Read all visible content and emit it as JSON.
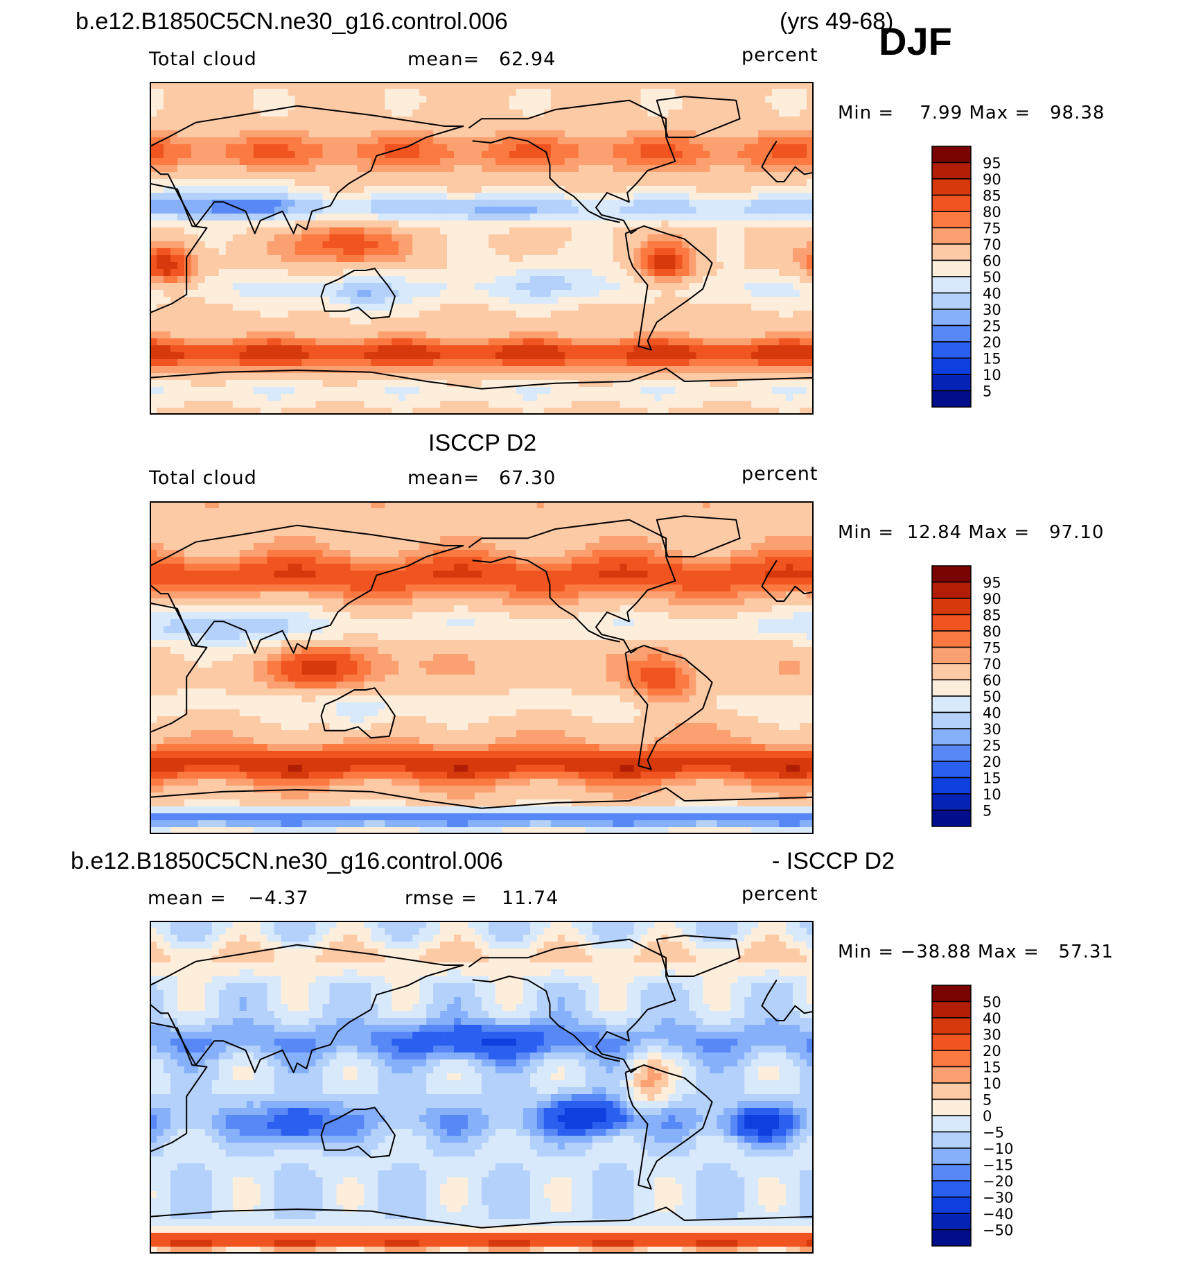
{
  "header": {
    "case": "b.e12.B1850C5CN.ne30_g16.control.006",
    "years": "(yrs 49-68)",
    "season": "DJF"
  },
  "panels": [
    {
      "id": "model",
      "heading": "",
      "variable": "Total cloud",
      "stat_left": "",
      "mean_label": "mean=",
      "mean_value": "62.94",
      "units": "percent",
      "minmax": "Min =    7.99 Max =   98.38"
    },
    {
      "id": "obs",
      "heading": "ISCCP D2",
      "variable": "Total cloud",
      "mean_label": "mean=",
      "mean_value": "67.30",
      "units": "percent",
      "minmax": "Min =  12.84 Max =   97.10"
    },
    {
      "id": "diff",
      "heading_left": "b.e12.B1850C5CN.ne30_g16.control.006",
      "heading_right": "- ISCCP D2",
      "mean_label": "mean =",
      "mean_value": "−4.37",
      "rmse_label": "rmse =",
      "rmse_value": "11.74",
      "units": "percent",
      "minmax": "Min = −38.88 Max =   57.31"
    }
  ],
  "chart_data": [
    {
      "type": "heatmap",
      "title": "b.e12.B1850C5CN.ne30_g16.control.006 (yrs 49-68) DJF",
      "variable": "Total cloud",
      "units": "percent",
      "mean": 62.94,
      "min": 7.99,
      "max": 98.38,
      "levels": [
        5,
        10,
        15,
        20,
        25,
        30,
        40,
        50,
        60,
        70,
        75,
        80,
        85,
        90,
        95
      ],
      "level_labels": [
        "95",
        "90",
        "85",
        "80",
        "75",
        "70",
        "60",
        "50",
        "40",
        "30",
        "25",
        "20",
        "15",
        "10",
        "5"
      ],
      "colors": [
        "#7a0403",
        "#b21e05",
        "#d63a0c",
        "#f05420",
        "#fb7a42",
        "#fba070",
        "#fdcaa6",
        "#fdeedc",
        "#d8e9fb",
        "#b3d1fb",
        "#86b1fa",
        "#5788f6",
        "#2b5ff0",
        "#0f3fde",
        "#0623b8",
        "#000e8c"
      ]
    },
    {
      "type": "heatmap",
      "title": "ISCCP D2",
      "variable": "Total cloud",
      "units": "percent",
      "mean": 67.3,
      "min": 12.84,
      "max": 97.1,
      "levels": [
        5,
        10,
        15,
        20,
        25,
        30,
        40,
        50,
        60,
        70,
        75,
        80,
        85,
        90,
        95
      ],
      "level_labels": [
        "95",
        "90",
        "85",
        "80",
        "75",
        "70",
        "60",
        "50",
        "40",
        "30",
        "25",
        "20",
        "15",
        "10",
        "5"
      ],
      "colors": [
        "#7a0403",
        "#b21e05",
        "#d63a0c",
        "#f05420",
        "#fb7a42",
        "#fba070",
        "#fdcaa6",
        "#fdeedc",
        "#d8e9fb",
        "#b3d1fb",
        "#86b1fa",
        "#5788f6",
        "#2b5ff0",
        "#0f3fde",
        "#0623b8",
        "#000e8c"
      ]
    },
    {
      "type": "heatmap",
      "title": "b.e12.B1850C5CN.ne30_g16.control.006 - ISCCP D2",
      "units": "percent",
      "mean": -4.37,
      "rmse": 11.74,
      "min": -38.88,
      "max": 57.31,
      "levels": [
        -50,
        -40,
        -30,
        -20,
        -15,
        -10,
        -5,
        0,
        5,
        10,
        15,
        20,
        30,
        40,
        50
      ],
      "level_labels": [
        "50",
        "40",
        "30",
        "20",
        "15",
        "10",
        "5",
        "0",
        "−5",
        "−10",
        "−15",
        "−20",
        "−30",
        "−40",
        "−50"
      ],
      "colors": [
        "#7a0403",
        "#b21e05",
        "#d63a0c",
        "#f05420",
        "#fb7a42",
        "#fba070",
        "#fdcaa6",
        "#fdeedc",
        "#d8e9fb",
        "#b3d1fb",
        "#86b1fa",
        "#5788f6",
        "#2b5ff0",
        "#0f3fde",
        "#0623b8",
        "#000e8c"
      ]
    }
  ]
}
